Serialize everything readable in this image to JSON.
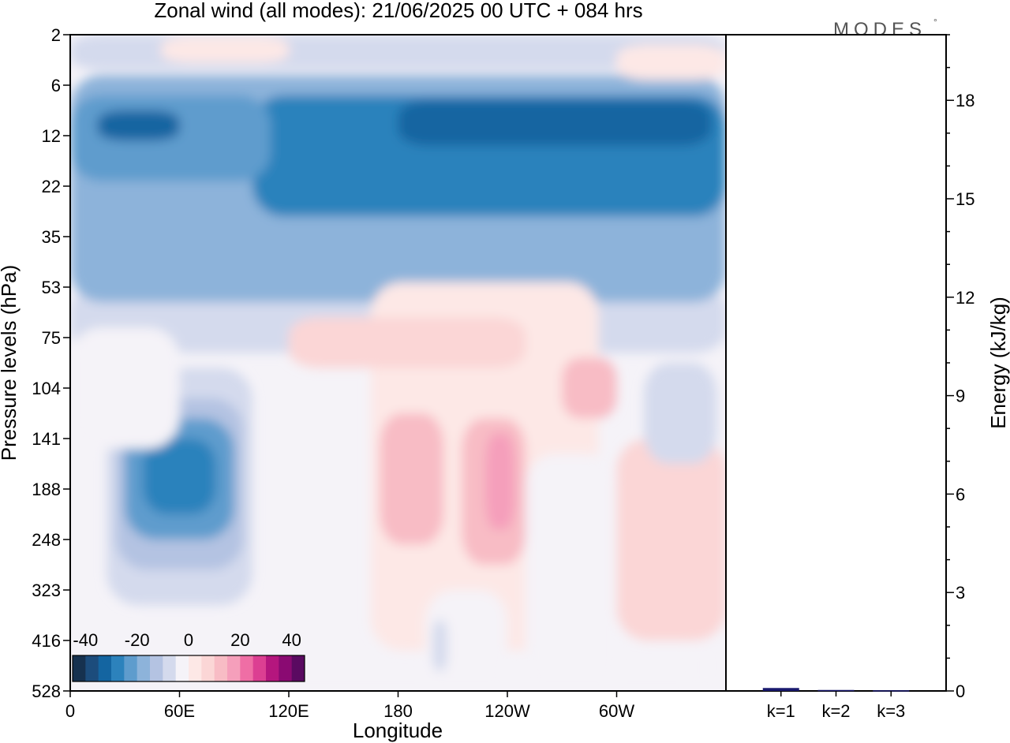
{
  "title": "Zonal wind (all modes):  21/06/2025  00 UTC  + 084 hrs",
  "brand": {
    "name": "MODES",
    "mark": "°"
  },
  "colors": {
    "blue_3": "#1c4c7c",
    "blue_2": "#1465a1",
    "blue_1": "#2c82bc",
    "blue_0": "#3a8fc8",
    "blue_m": "#6aa6d2",
    "blue_l": "#9bbfe0",
    "blue_p": "#c2cfe6",
    "blue_w": "#dde2f1",
    "neutral": "#f5f3f8",
    "pink_w": "#fde8e6",
    "pink_l": "#fbd6d6",
    "pink_m": "#f7bcc7",
    "pink_d": "#f490b4",
    "bar": "#1a1a6e"
  },
  "chart_data": [
    {
      "type": "heatmap",
      "title": "Zonal wind (all modes):  21/06/2025  00 UTC  + 084 hrs",
      "xlabel": "Longitude",
      "ylabel": "Pressure levels (hPa)",
      "x_ticks": [
        {
          "lon": 0,
          "label": "0"
        },
        {
          "lon": 60,
          "label": "60E"
        },
        {
          "lon": 120,
          "label": "120E"
        },
        {
          "lon": 180,
          "label": "180"
        },
        {
          "lon": 240,
          "label": "120W"
        },
        {
          "lon": 300,
          "label": "60W"
        }
      ],
      "x_range": [
        0,
        360
      ],
      "y_levels": [
        "2",
        "6",
        "12",
        "22",
        "35",
        "53",
        "75",
        "104",
        "141",
        "188",
        "248",
        "323",
        "416",
        "528"
      ],
      "colorbar": {
        "labels": [
          "-40",
          "-20",
          "0",
          "20",
          "40"
        ],
        "min": -45,
        "max": 45,
        "step": 5,
        "colors": [
          "#16314f",
          "#1c4c7c",
          "#1465a1",
          "#2c82bc",
          "#5e9ccd",
          "#8db3da",
          "#b4c3e2",
          "#d4daed",
          "#f5f3f8",
          "#fde8e6",
          "#fbd6d6",
          "#f8bcc5",
          "#f59fbb",
          "#ef6ea5",
          "#dc3f92",
          "#b5167e",
          "#8a0a72",
          "#5a0a61"
        ]
      },
      "regions": [
        {
          "lon": [
            0,
            360
          ],
          "level": [
            12.8,
            13
          ],
          "value": -5
        },
        {
          "lon": [
            0,
            360
          ],
          "level": [
            5,
            6.3
          ],
          "value": -6
        },
        {
          "lon": [
            0,
            360
          ],
          "level": [
            0.8,
            5.3
          ],
          "value": -16
        },
        {
          "lon": [
            100,
            360
          ],
          "level": [
            1.2,
            3.6
          ],
          "value": -26
        },
        {
          "lon": [
            0,
            110
          ],
          "level": [
            1.2,
            2.9
          ],
          "value": -24
        },
        {
          "lon": [
            180,
            352
          ],
          "level": [
            1.3,
            2.2
          ],
          "value": -33
        },
        {
          "lon": [
            15,
            60
          ],
          "level": [
            1.5,
            2.1
          ],
          "value": -33
        },
        {
          "lon": [
            0,
            360
          ],
          "level": [
            0,
            0.7
          ],
          "value": -8
        },
        {
          "lon": [
            50,
            120
          ],
          "level": [
            0.05,
            0.55
          ],
          "value": 2
        },
        {
          "lon": [
            300,
            360
          ],
          "level": [
            0.2,
            0.9
          ],
          "value": 2
        },
        {
          "lon": [
            165,
            290
          ],
          "level": [
            4.9,
            12.2
          ],
          "value": 4
        },
        {
          "lon": [
            170,
            205
          ],
          "level": [
            7.5,
            10.1
          ],
          "value": 11
        },
        {
          "lon": [
            215,
            250
          ],
          "level": [
            7.6,
            10.5
          ],
          "value": 12
        },
        {
          "lon": [
            228,
            244
          ],
          "level": [
            7.9,
            9.8
          ],
          "value": 17
        },
        {
          "lon": [
            270,
            300
          ],
          "level": [
            6.4,
            7.6
          ],
          "value": 11
        },
        {
          "lon": [
            120,
            250
          ],
          "level": [
            5.6,
            6.6
          ],
          "value": 5
        },
        {
          "lon": [
            300,
            360
          ],
          "level": [
            8,
            12
          ],
          "value": 6
        },
        {
          "lon": [
            20,
            100
          ],
          "level": [
            6.6,
            11.3
          ],
          "value": -8
        },
        {
          "lon": [
            25,
            95
          ],
          "level": [
            7.2,
            10.6
          ],
          "value": -14
        },
        {
          "lon": [
            30,
            90
          ],
          "level": [
            7.6,
            10
          ],
          "value": -22
        },
        {
          "lon": [
            40,
            80
          ],
          "level": [
            8,
            9.5
          ],
          "value": -29
        },
        {
          "lon": [
            0,
            60
          ],
          "level": [
            5.8,
            8.2
          ],
          "value": -5
        },
        {
          "lon": [
            315,
            355
          ],
          "level": [
            6.5,
            8.5
          ],
          "value": -7
        },
        {
          "lon": [
            320,
            345
          ],
          "level": [
            7,
            8
          ],
          "value": -10
        },
        {
          "lon": [
            250,
            300
          ],
          "level": [
            8.3,
            13
          ],
          "value": -4
        },
        {
          "lon": [
            195,
            240
          ],
          "level": [
            11,
            13
          ],
          "value": -4
        },
        {
          "lon": [
            199,
            207
          ],
          "level": [
            11.6,
            12.6
          ],
          "value": -10
        },
        {
          "lon": [
            340,
            360
          ],
          "level": [
            12,
            13
          ],
          "value": -4
        }
      ]
    },
    {
      "type": "bar",
      "categories": [
        "k=1",
        "k=2",
        "k=3"
      ],
      "values": [
        0.09,
        0.03,
        0.02
      ],
      "ylabel": "Energy (kJ/kg)",
      "ylim": [
        0,
        20
      ],
      "y_ticks": [
        0,
        3,
        6,
        9,
        12,
        15,
        18
      ]
    }
  ]
}
